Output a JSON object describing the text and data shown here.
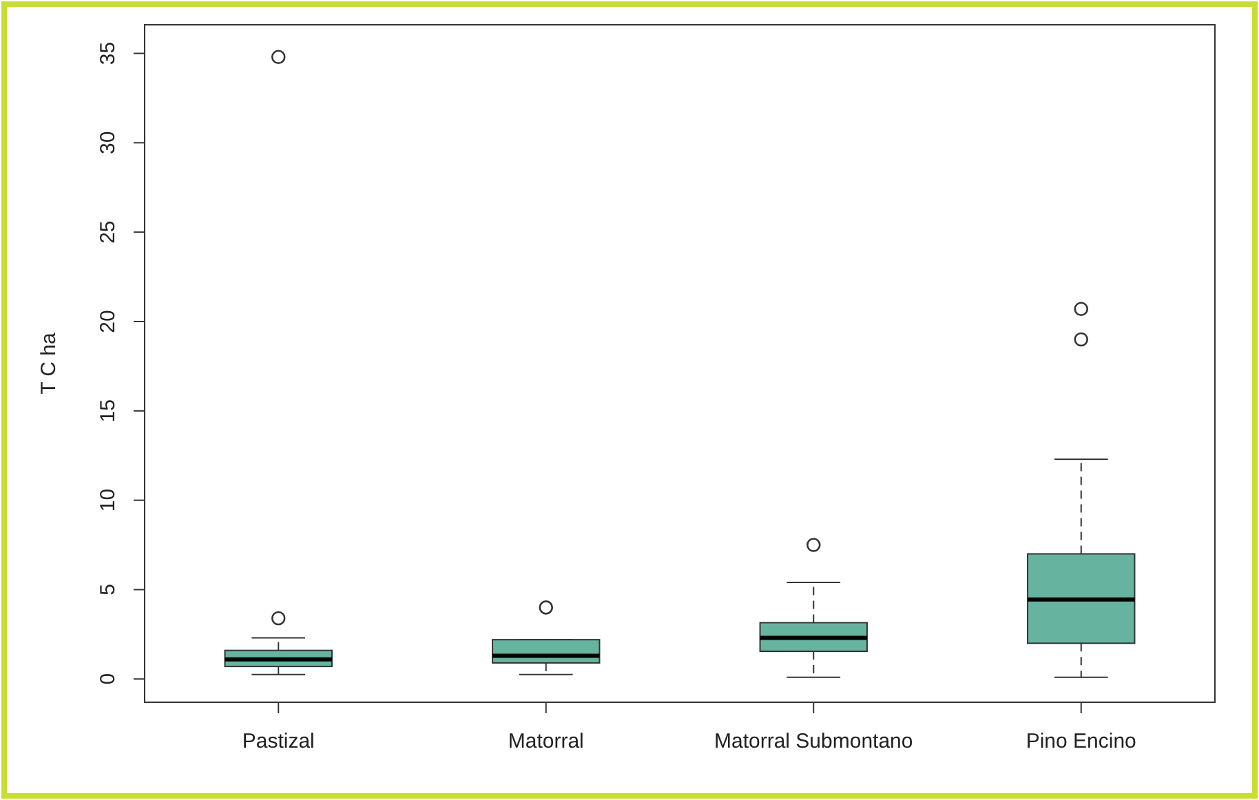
{
  "chart_data": {
    "type": "box",
    "ylabel": "T C ha",
    "categories": [
      "Pastizal",
      "Matorral",
      "Matorral Submontano",
      "Pino Encino"
    ],
    "color": "#66b4a0",
    "ylim": [
      -1.3,
      36.6
    ],
    "yticks": [
      0,
      5,
      10,
      15,
      20,
      25,
      30,
      35
    ],
    "grid": false,
    "line_style": "dashed",
    "boxes": [
      {
        "low": 0.25,
        "q1": 0.7,
        "median": 1.1,
        "q3": 1.6,
        "high": 2.3,
        "outliers": [
          3.4,
          34.8
        ]
      },
      {
        "low": 0.25,
        "q1": 0.9,
        "median": 1.3,
        "q3": 2.2,
        "high": 2.2,
        "outliers": [
          4.0
        ]
      },
      {
        "low": 0.1,
        "q1": 1.55,
        "median": 2.3,
        "q3": 3.15,
        "high": 5.4,
        "outliers": [
          7.5
        ]
      },
      {
        "low": 0.1,
        "q1": 2.0,
        "median": 4.45,
        "q3": 7.0,
        "high": 12.3,
        "outliers": [
          19.0,
          20.7
        ]
      }
    ]
  }
}
